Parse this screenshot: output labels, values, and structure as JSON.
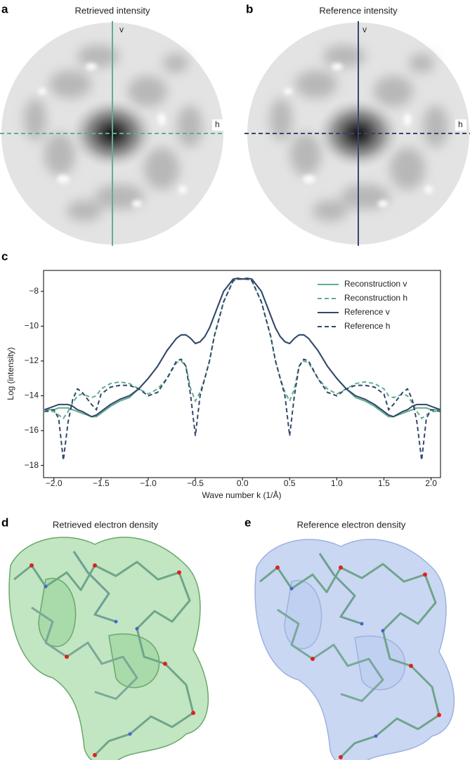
{
  "panels": [
    {
      "label": "a",
      "title": "Retrieved intensity",
      "v": "v",
      "h": "h"
    },
    {
      "label": "b",
      "title": "Reference intensity",
      "v": "v",
      "h": "h"
    },
    {
      "label": "d",
      "title": "Retrieved electron density"
    },
    {
      "label": "e",
      "title": "Reference electron density"
    }
  ],
  "chart_data": {
    "type": "line",
    "label": "c",
    "x_label": "Wave number k (1/Å)",
    "y_label": "Log (intensity)",
    "x": [
      -2.1,
      -2.0,
      -1.95,
      -1.9,
      -1.85,
      -1.8,
      -1.75,
      -1.7,
      -1.6,
      -1.55,
      -1.5,
      -1.4,
      -1.3,
      -1.2,
      -1.1,
      -1.0,
      -0.9,
      -0.8,
      -0.7,
      -0.65,
      -0.6,
      -0.55,
      -0.5,
      -0.45,
      -0.4,
      -0.35,
      -0.3,
      -0.2,
      -0.1,
      -0.05,
      0,
      0.05,
      0.1,
      0.2,
      0.3,
      0.35,
      0.4,
      0.45,
      0.5,
      0.55,
      0.6,
      0.65,
      0.7,
      0.8,
      0.9,
      1.0,
      1.1,
      1.2,
      1.3,
      1.4,
      1.5,
      1.55,
      1.6,
      1.7,
      1.75,
      1.8,
      1.85,
      1.9,
      1.95,
      2.0,
      2.1
    ],
    "series": [
      {
        "name": "Reconstruction v",
        "color": "#5fae8e",
        "style": "solid",
        "values": [
          -14.8,
          -14.8,
          -14.7,
          -14.7,
          -14.7,
          -14.8,
          -14.9,
          -15.0,
          -15.2,
          -15.2,
          -15.0,
          -14.6,
          -14.3,
          -14.1,
          -13.6,
          -13.0,
          -12.3,
          -11.4,
          -10.7,
          -10.5,
          -10.5,
          -10.7,
          -11.0,
          -10.9,
          -10.6,
          -10.1,
          -9.4,
          -8.0,
          -7.3,
          -7.25,
          -7.3,
          -7.25,
          -7.3,
          -8.0,
          -9.4,
          -10.1,
          -10.6,
          -10.9,
          -11.0,
          -10.7,
          -10.5,
          -10.5,
          -10.7,
          -11.4,
          -12.3,
          -13.0,
          -13.6,
          -14.1,
          -14.3,
          -14.6,
          -15.0,
          -15.2,
          -15.2,
          -15.0,
          -14.9,
          -14.8,
          -14.7,
          -14.7,
          -14.7,
          -14.8,
          -14.8
        ]
      },
      {
        "name": "Reconstruction h",
        "color": "#5fae8e",
        "style": "dashed",
        "values": [
          -14.9,
          -14.9,
          -15.1,
          -15.3,
          -14.9,
          -14.4,
          -14.0,
          -13.9,
          -14.1,
          -14.0,
          -13.6,
          -13.3,
          -13.2,
          -13.3,
          -13.6,
          -13.9,
          -13.6,
          -13.0,
          -12.1,
          -12.0,
          -12.3,
          -13.6,
          -14.3,
          -13.8,
          -13.0,
          -12.0,
          -10.6,
          -8.6,
          -7.4,
          -7.3,
          -7.3,
          -7.3,
          -7.4,
          -8.6,
          -10.6,
          -12.0,
          -13.0,
          -13.8,
          -14.3,
          -13.6,
          -12.3,
          -12.0,
          -12.1,
          -13.0,
          -13.6,
          -13.9,
          -13.6,
          -13.3,
          -13.2,
          -13.3,
          -13.6,
          -14.0,
          -14.1,
          -13.9,
          -14.0,
          -14.4,
          -14.9,
          -15.3,
          -15.1,
          -14.9,
          -14.9
        ]
      },
      {
        "name": "Reference v",
        "color": "#34466b",
        "style": "solid",
        "values": [
          -14.8,
          -14.6,
          -14.5,
          -14.5,
          -14.5,
          -14.6,
          -14.8,
          -14.9,
          -15.2,
          -15.1,
          -14.9,
          -14.5,
          -14.2,
          -14.0,
          -13.6,
          -13.0,
          -12.3,
          -11.4,
          -10.7,
          -10.5,
          -10.5,
          -10.7,
          -11.0,
          -10.9,
          -10.6,
          -10.1,
          -9.4,
          -8.0,
          -7.3,
          -7.25,
          -7.3,
          -7.25,
          -7.3,
          -8.0,
          -9.4,
          -10.1,
          -10.6,
          -10.9,
          -11.0,
          -10.7,
          -10.5,
          -10.5,
          -10.7,
          -11.4,
          -12.3,
          -13.0,
          -13.6,
          -14.0,
          -14.2,
          -14.5,
          -14.9,
          -15.1,
          -15.2,
          -14.9,
          -14.8,
          -14.6,
          -14.5,
          -14.5,
          -14.5,
          -14.6,
          -14.8
        ]
      },
      {
        "name": "Reference h",
        "color": "#34466b",
        "style": "dashed",
        "values": [
          -14.9,
          -14.8,
          -15.3,
          -17.7,
          -15.5,
          -14.2,
          -13.6,
          -13.8,
          -14.5,
          -14.8,
          -13.9,
          -13.5,
          -13.4,
          -13.4,
          -13.6,
          -14.0,
          -13.8,
          -13.0,
          -12.0,
          -11.9,
          -12.3,
          -14.0,
          -16.3,
          -14.0,
          -13.0,
          -12.0,
          -10.6,
          -8.6,
          -7.4,
          -7.3,
          -7.3,
          -7.3,
          -7.4,
          -8.6,
          -10.6,
          -12.0,
          -13.0,
          -14.0,
          -16.3,
          -14.0,
          -12.3,
          -11.9,
          -12.0,
          -13.0,
          -13.8,
          -14.0,
          -13.6,
          -13.4,
          -13.4,
          -13.5,
          -13.9,
          -14.8,
          -14.5,
          -13.8,
          -13.6,
          -14.2,
          -15.5,
          -17.7,
          -15.3,
          -14.8,
          -14.9
        ]
      }
    ],
    "xlim": [
      -2.11,
      2.1
    ],
    "ylim": [
      -18.7,
      -6.8
    ],
    "xticks": [
      {
        "value": -2.0,
        "label": "−2.0"
      },
      {
        "value": -1.5,
        "label": "−1.5"
      },
      {
        "value": -1.0,
        "label": "−1.0"
      },
      {
        "value": -0.5,
        "label": "−0.5"
      },
      {
        "value": 0,
        "label": "0.0"
      },
      {
        "value": 0.5,
        "label": "0.5"
      },
      {
        "value": 1.0,
        "label": "1.0"
      },
      {
        "value": 1.5,
        "label": "1.5"
      },
      {
        "value": 2.0,
        "label": "2.0"
      }
    ],
    "yticks": [
      {
        "value": -8,
        "label": "−8"
      },
      {
        "value": -10,
        "label": "−10"
      },
      {
        "value": -12,
        "label": "−12"
      },
      {
        "value": -14,
        "label": "−14"
      },
      {
        "value": -16,
        "label": "−16"
      },
      {
        "value": -18,
        "label": "−18"
      }
    ],
    "legend": "upper right"
  }
}
